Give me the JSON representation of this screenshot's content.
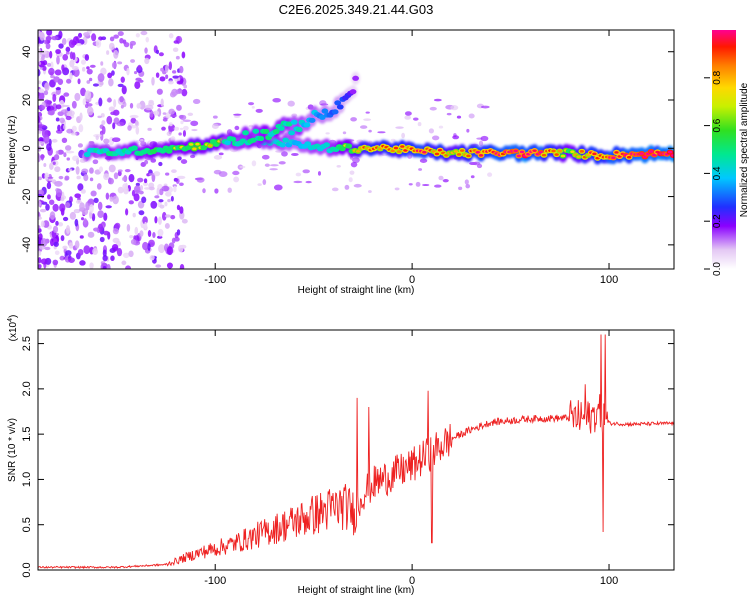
{
  "title": "C2E6.2025.349.21.44.G03",
  "chart_data": [
    {
      "type": "heatmap",
      "name": "spectrogram",
      "title": "C2E6.2025.349.21.44.G03",
      "xlabel": "Height of straight line (km)",
      "ylabel": "Frequency (Hz)",
      "xlim": [
        -190,
        133
      ],
      "ylim": [
        -50,
        49
      ],
      "xticks": [
        -100,
        0,
        100
      ],
      "xtick_labels": [
        "-100",
        "0",
        "100"
      ],
      "yticks": [
        40,
        20,
        0,
        -20,
        -40
      ],
      "ytick_labels": [
        "40",
        "20",
        "0",
        "-20",
        "-40"
      ],
      "colorbar": {
        "label": "Normalized spectral amplitude",
        "range": [
          0,
          1
        ],
        "ticks": [
          0.0,
          0.2,
          0.4,
          0.6,
          0.8
        ],
        "tick_labels": [
          "0.0",
          "0.2",
          "0.4",
          "0.6",
          "0.8"
        ]
      },
      "main_ridge": [
        {
          "x": -165,
          "f": -2,
          "amp": 0.45
        },
        {
          "x": -140,
          "f": -1,
          "amp": 0.5
        },
        {
          "x": -120,
          "f": 0,
          "amp": 0.55
        },
        {
          "x": -100,
          "f": 2,
          "amp": 0.6
        },
        {
          "x": -85,
          "f": 4,
          "amp": 0.5
        },
        {
          "x": -70,
          "f": 3,
          "amp": 0.45
        },
        {
          "x": -55,
          "f": 1,
          "amp": 0.4
        },
        {
          "x": -40,
          "f": 0,
          "amp": 0.45
        },
        {
          "x": -25,
          "f": 0,
          "amp": 0.7
        },
        {
          "x": -10,
          "f": 0,
          "amp": 0.75
        },
        {
          "x": 0,
          "f": -1,
          "amp": 0.8
        },
        {
          "x": 20,
          "f": -2,
          "amp": 0.7
        },
        {
          "x": 60,
          "f": -2,
          "amp": 0.95
        },
        {
          "x": 80,
          "f": -2,
          "amp": 0.6
        },
        {
          "x": 95,
          "f": -3,
          "amp": 0.8
        },
        {
          "x": 133,
          "f": -2,
          "amp": 0.95
        }
      ],
      "branch": [
        {
          "x": -95,
          "f": 3,
          "amp": 0.45
        },
        {
          "x": -75,
          "f": 6,
          "amp": 0.5
        },
        {
          "x": -60,
          "f": 9,
          "amp": 0.45
        },
        {
          "x": -45,
          "f": 14,
          "amp": 0.35
        },
        {
          "x": -35,
          "f": 18,
          "amp": 0.3
        },
        {
          "x": -28,
          "f": 29,
          "amp": 0.15
        }
      ]
    },
    {
      "type": "line",
      "name": "snr",
      "xlabel": "Height of straight line (km)",
      "ylabel": "SNR (10 * v/v)",
      "scale_label": "(x10",
      "scale_exponent": "4",
      "xlim": [
        -190,
        133
      ],
      "ylim": [
        0,
        2.65
      ],
      "xticks": [
        -100,
        0,
        100
      ],
      "xtick_labels": [
        "-100",
        "0",
        "100"
      ],
      "yticks": [
        0.0,
        0.5,
        1.0,
        1.5,
        2.0,
        2.5
      ],
      "ytick_labels": [
        "0.0",
        "0.5",
        "1.0",
        "1.5",
        "2.0",
        "2.5"
      ],
      "color": "#ee2222",
      "series": [
        {
          "name": "SNR",
          "x": [
            -190,
            -150,
            -125,
            -110,
            -90,
            -75,
            -60,
            -45,
            -35,
            -30,
            -25,
            -20,
            -10,
            0,
            10,
            20,
            30,
            40,
            60,
            80,
            90,
            95,
            100,
            110,
            133
          ],
          "y": [
            0.02,
            0.02,
            0.05,
            0.15,
            0.25,
            0.35,
            0.45,
            0.55,
            0.6,
            0.55,
            0.85,
            0.95,
            1.05,
            1.15,
            1.3,
            1.45,
            1.55,
            1.63,
            1.67,
            1.68,
            1.68,
            1.75,
            1.62,
            1.61,
            1.62
          ]
        }
      ],
      "spikes": [
        {
          "x": -28,
          "y": 1.9
        },
        {
          "x": -22,
          "y": 1.8
        },
        {
          "x": 8,
          "y": 1.98
        },
        {
          "x": 10,
          "y": 0.3
        },
        {
          "x": 96,
          "y": 2.6
        },
        {
          "x": 97,
          "y": 0.42
        },
        {
          "x": 98,
          "y": 2.6
        },
        {
          "x": 88,
          "y": 2.05
        }
      ]
    }
  ]
}
